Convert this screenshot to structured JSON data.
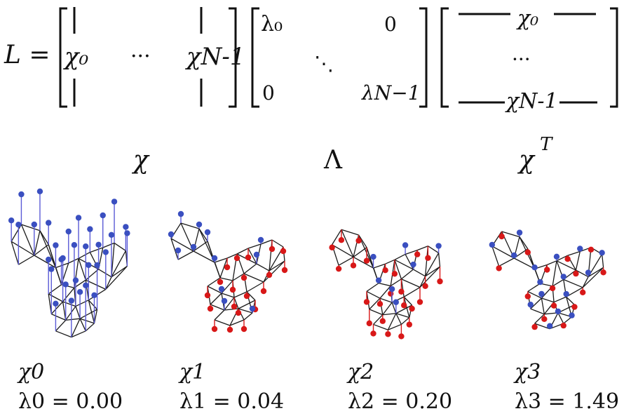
{
  "equation": {
    "lhs": "L =",
    "chi0": "χ₀",
    "chiN1": "χN-1",
    "dots": "···",
    "lambda0": "λ₀",
    "zero": "0",
    "ddots": "⋱",
    "lambdaN1": "λN−1",
    "row0": "χ₀",
    "vdots": "···",
    "rowN1": "χN-1",
    "chi": "χ",
    "Lambda": "Λ",
    "chiT": "χ",
    "T": "T"
  },
  "panels": [
    {
      "chi": "χ0",
      "lambda": "λ0 = 0.00"
    },
    {
      "chi": "χ1",
      "lambda": "λ1 = 0.04"
    },
    {
      "chi": "χ2",
      "lambda": "λ2 = 0.20"
    },
    {
      "chi": "χ3",
      "lambda": "λ3 = 1.49"
    }
  ],
  "colors": {
    "positive": "#3a4fc0",
    "negative": "#d81818",
    "edge": "#1a1a1a"
  }
}
